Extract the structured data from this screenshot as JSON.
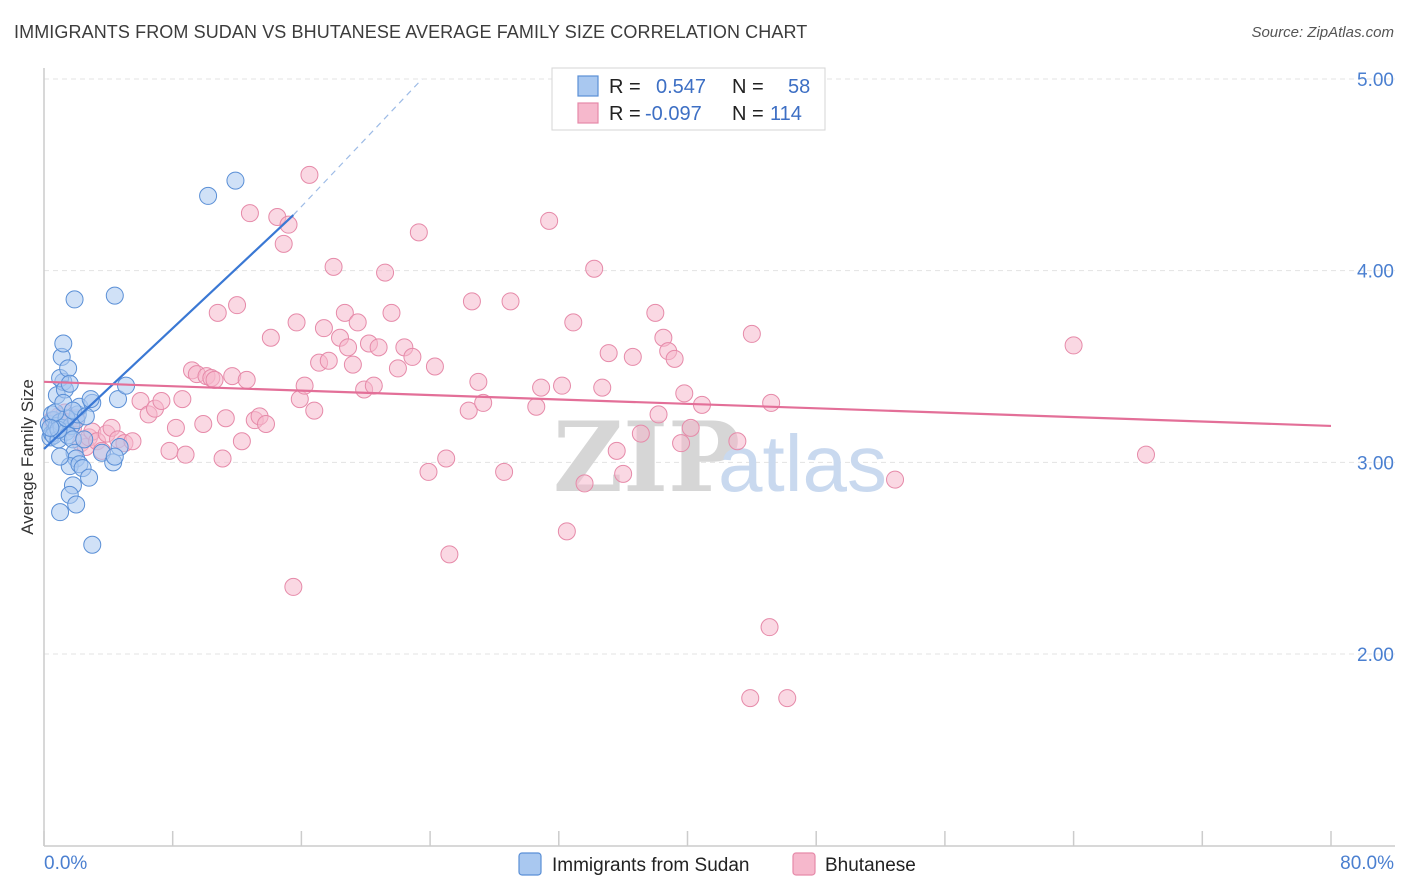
{
  "header": {
    "title": "IMMIGRANTS FROM SUDAN VS BHUTANESE AVERAGE FAMILY SIZE CORRELATION CHART",
    "source": "Source: ZipAtlas.com"
  },
  "legend": {
    "series1": {
      "r_label": "R =",
      "r_value": "0.547",
      "n_label": "N =",
      "n_value": "58"
    },
    "series2": {
      "r_label": "R =",
      "r_value": "-0.097",
      "n_label": "N =",
      "n_value": "114"
    }
  },
  "watermark": {
    "zip": "ZIP",
    "atlas": "atlas"
  },
  "colors": {
    "blue_fill": "#a9c8f0",
    "blue_stroke": "#5a8fd6",
    "blue_line": "#3a78d4",
    "pink_fill": "#f6b8cc",
    "pink_stroke": "#e68aa9",
    "pink_line": "#e36f98"
  },
  "chart_data": {
    "type": "scatter",
    "title": "IMMIGRANTS FROM SUDAN VS BHUTANESE AVERAGE FAMILY SIZE CORRELATION CHART",
    "xlabel": "",
    "ylabel": "Average Family Size",
    "xlim": [
      0,
      80
    ],
    "ylim": [
      1.0,
      5.1
    ],
    "x_tick_labels": [
      "0.0%",
      "80.0%"
    ],
    "y_ticks": [
      2.0,
      3.0,
      4.0,
      5.0
    ],
    "y_tick_labels": [
      "2.00",
      "3.00",
      "4.00",
      "5.00"
    ],
    "series": [
      {
        "name": "Immigrants from Sudan",
        "color": "blue",
        "trend": {
          "x0": 0.0,
          "y0": 3.07,
          "x1": 15.5,
          "y1": 4.29,
          "dash_to_x": 23.5,
          "dash_to_y": 5.0
        },
        "points": [
          [
            0.3,
            3.2
          ],
          [
            0.4,
            3.13
          ],
          [
            0.5,
            3.15
          ],
          [
            0.6,
            3.22
          ],
          [
            0.5,
            3.25
          ],
          [
            0.7,
            3.17
          ],
          [
            0.8,
            3.19
          ],
          [
            0.6,
            3.14
          ],
          [
            0.9,
            3.12
          ],
          [
            1.0,
            3.21
          ],
          [
            1.1,
            3.18
          ],
          [
            0.8,
            3.35
          ],
          [
            1.2,
            3.42
          ],
          [
            1.0,
            3.44
          ],
          [
            1.1,
            3.55
          ],
          [
            1.2,
            3.62
          ],
          [
            1.5,
            3.49
          ],
          [
            1.3,
            3.38
          ],
          [
            1.6,
            3.41
          ],
          [
            1.4,
            3.16
          ],
          [
            1.7,
            3.19
          ],
          [
            1.5,
            3.14
          ],
          [
            1.8,
            3.12
          ],
          [
            2.0,
            3.22
          ],
          [
            2.1,
            3.25
          ],
          [
            2.2,
            3.29
          ],
          [
            1.9,
            3.05
          ],
          [
            2.0,
            3.02
          ],
          [
            1.6,
            2.98
          ],
          [
            2.2,
            2.99
          ],
          [
            2.4,
            2.97
          ],
          [
            1.8,
            2.88
          ],
          [
            1.6,
            2.83
          ],
          [
            1.0,
            2.74
          ],
          [
            2.0,
            2.78
          ],
          [
            2.8,
            2.92
          ],
          [
            3.0,
            3.31
          ],
          [
            2.9,
            3.33
          ],
          [
            4.6,
            3.33
          ],
          [
            4.7,
            3.08
          ],
          [
            5.1,
            3.4
          ],
          [
            3.6,
            3.05
          ],
          [
            4.3,
            3.0
          ],
          [
            4.4,
            3.03
          ],
          [
            1.0,
            3.03
          ],
          [
            1.9,
            3.85
          ],
          [
            4.4,
            3.87
          ],
          [
            10.2,
            4.39
          ],
          [
            11.9,
            4.47
          ],
          [
            3.0,
            2.57
          ],
          [
            0.9,
            3.17
          ],
          [
            1.4,
            3.23
          ],
          [
            2.5,
            3.12
          ],
          [
            0.7,
            3.26
          ],
          [
            1.2,
            3.31
          ],
          [
            1.8,
            3.27
          ],
          [
            0.4,
            3.18
          ],
          [
            2.6,
            3.24
          ]
        ]
      },
      {
        "name": "Bhutanese",
        "color": "pink",
        "trend": {
          "x0": 0.0,
          "y0": 3.42,
          "x1": 80.0,
          "y1": 3.19
        },
        "points": [
          [
            0.5,
            3.22
          ],
          [
            0.7,
            3.2
          ],
          [
            0.9,
            3.24
          ],
          [
            1.1,
            3.19
          ],
          [
            1.3,
            3.26
          ],
          [
            1.5,
            3.21
          ],
          [
            1.8,
            3.18
          ],
          [
            2.0,
            3.23
          ],
          [
            2.3,
            3.1
          ],
          [
            2.6,
            3.08
          ],
          [
            2.8,
            3.13
          ],
          [
            3.0,
            3.16
          ],
          [
            3.3,
            3.11
          ],
          [
            3.6,
            3.06
          ],
          [
            3.9,
            3.15
          ],
          [
            4.2,
            3.18
          ],
          [
            4.6,
            3.12
          ],
          [
            5.0,
            3.1
          ],
          [
            5.5,
            3.11
          ],
          [
            6.0,
            3.32
          ],
          [
            6.5,
            3.25
          ],
          [
            6.9,
            3.28
          ],
          [
            7.3,
            3.32
          ],
          [
            7.8,
            3.06
          ],
          [
            8.2,
            3.18
          ],
          [
            8.6,
            3.33
          ],
          [
            8.8,
            3.04
          ],
          [
            9.2,
            3.48
          ],
          [
            9.5,
            3.46
          ],
          [
            9.9,
            3.2
          ],
          [
            10.1,
            3.45
          ],
          [
            10.4,
            3.44
          ],
          [
            10.6,
            3.43
          ],
          [
            10.8,
            3.78
          ],
          [
            11.1,
            3.02
          ],
          [
            11.3,
            3.23
          ],
          [
            11.7,
            3.45
          ],
          [
            12.0,
            3.82
          ],
          [
            12.3,
            3.11
          ],
          [
            12.6,
            3.43
          ],
          [
            12.8,
            4.3
          ],
          [
            13.1,
            3.22
          ],
          [
            13.4,
            3.24
          ],
          [
            13.8,
            3.2
          ],
          [
            14.1,
            3.65
          ],
          [
            14.5,
            4.28
          ],
          [
            14.9,
            4.14
          ],
          [
            15.2,
            4.24
          ],
          [
            15.5,
            2.35
          ],
          [
            15.7,
            3.73
          ],
          [
            15.9,
            3.33
          ],
          [
            16.2,
            3.4
          ],
          [
            16.5,
            4.5
          ],
          [
            16.8,
            3.27
          ],
          [
            17.1,
            3.52
          ],
          [
            17.4,
            3.7
          ],
          [
            17.7,
            3.53
          ],
          [
            18.0,
            4.02
          ],
          [
            18.4,
            3.65
          ],
          [
            18.7,
            3.78
          ],
          [
            18.9,
            3.6
          ],
          [
            19.2,
            3.51
          ],
          [
            19.5,
            3.73
          ],
          [
            19.9,
            3.38
          ],
          [
            20.2,
            3.62
          ],
          [
            20.5,
            3.4
          ],
          [
            20.8,
            3.6
          ],
          [
            21.2,
            3.99
          ],
          [
            21.6,
            3.78
          ],
          [
            22.0,
            3.49
          ],
          [
            22.4,
            3.6
          ],
          [
            22.9,
            3.55
          ],
          [
            23.3,
            4.2
          ],
          [
            23.9,
            2.95
          ],
          [
            24.3,
            3.5
          ],
          [
            25.0,
            3.02
          ],
          [
            25.2,
            2.52
          ],
          [
            26.4,
            3.27
          ],
          [
            26.6,
            3.84
          ],
          [
            27.0,
            3.42
          ],
          [
            27.3,
            3.31
          ],
          [
            28.6,
            2.95
          ],
          [
            29.0,
            3.84
          ],
          [
            30.6,
            3.29
          ],
          [
            30.9,
            3.39
          ],
          [
            31.4,
            4.26
          ],
          [
            32.2,
            3.4
          ],
          [
            32.5,
            2.64
          ],
          [
            32.9,
            3.73
          ],
          [
            33.6,
            2.89
          ],
          [
            34.2,
            4.01
          ],
          [
            34.7,
            3.39
          ],
          [
            35.1,
            3.57
          ],
          [
            35.6,
            3.06
          ],
          [
            36.0,
            2.94
          ],
          [
            36.6,
            3.55
          ],
          [
            37.1,
            3.15
          ],
          [
            38.0,
            3.78
          ],
          [
            38.2,
            3.25
          ],
          [
            38.5,
            3.65
          ],
          [
            38.8,
            3.58
          ],
          [
            39.2,
            3.54
          ],
          [
            39.6,
            3.1
          ],
          [
            39.8,
            3.36
          ],
          [
            40.2,
            3.18
          ],
          [
            40.9,
            3.3
          ],
          [
            43.1,
            3.11
          ],
          [
            43.9,
            1.77
          ],
          [
            44.0,
            3.67
          ],
          [
            45.1,
            2.14
          ],
          [
            45.2,
            3.31
          ],
          [
            46.2,
            1.77
          ],
          [
            52.9,
            2.91
          ],
          [
            64.0,
            3.61
          ],
          [
            68.5,
            3.04
          ]
        ]
      }
    ]
  },
  "bottom_legend": {
    "item1": "Immigrants from Sudan",
    "item2": "Bhutanese"
  }
}
